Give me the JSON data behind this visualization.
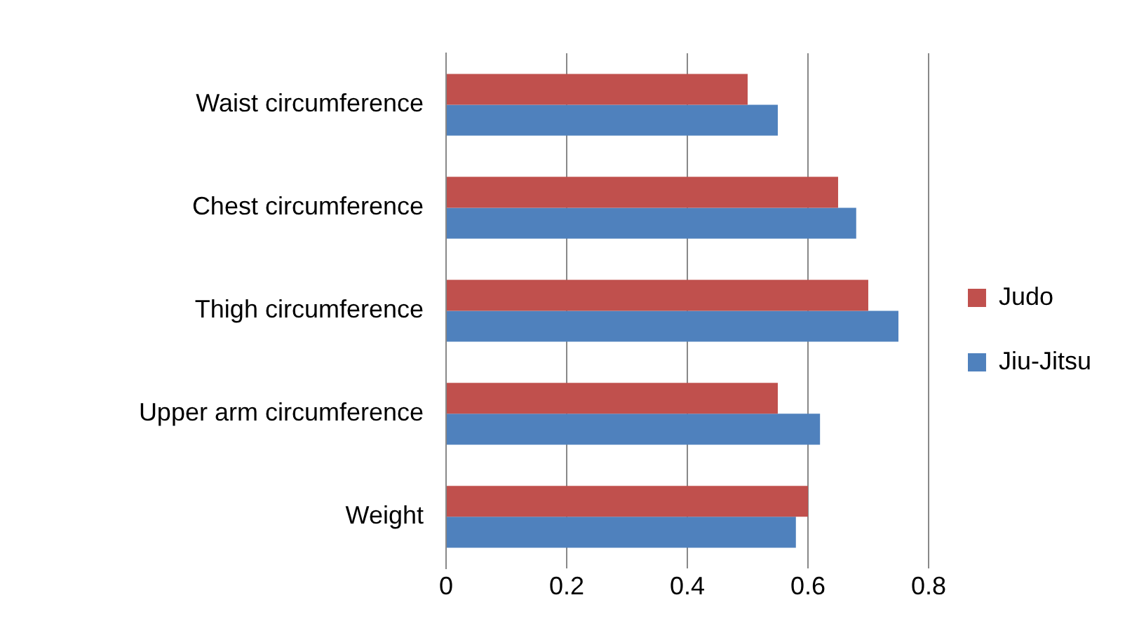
{
  "chart_data": {
    "type": "bar",
    "orientation": "horizontal",
    "categories": [
      "Waist circumference",
      "Chest circumference",
      "Thigh circumference",
      "Upper arm circumference",
      "Weight"
    ],
    "series": [
      {
        "name": "Judo",
        "color": "#c0504d",
        "values": [
          0.5,
          0.65,
          0.7,
          0.55,
          0.6
        ]
      },
      {
        "name": "Jiu-Jitsu",
        "color": "#4f81bd",
        "values": [
          0.55,
          0.68,
          0.75,
          0.62,
          0.58
        ]
      }
    ],
    "xlim": [
      0,
      0.8
    ],
    "xticks": [
      0,
      0.2,
      0.4,
      0.6,
      0.8
    ],
    "grid": "x",
    "legend": "right"
  }
}
